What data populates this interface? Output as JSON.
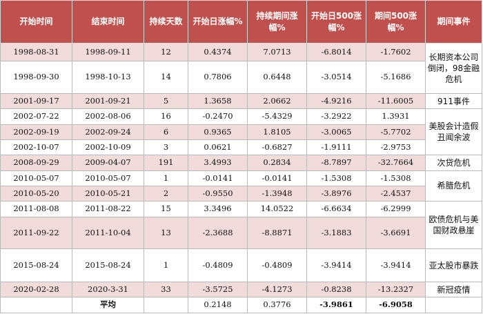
{
  "headers": [
    "开始时间",
    "结束时间",
    "持续天数",
    "开始日涨幅%",
    "持续期间涨幅%",
    "开始日500涨幅%",
    "期间500涨幅%",
    "期间事件"
  ],
  "rows": [
    [
      "1998-08-31",
      "1998-09-11",
      "12",
      "0.4374",
      "7.0713",
      "-6.8014",
      "-1.7602"
    ],
    [
      "1998-09-30",
      "1998-10-13",
      "14",
      "0.7806",
      "0.6448",
      "-3.0514",
      "-5.1686"
    ],
    [
      "2001-09-17",
      "2001-09-21",
      "5",
      "1.3658",
      "2.0662",
      "-4.9216",
      "-11.6005"
    ],
    [
      "2002-07-22",
      "2002-08-06",
      "16",
      "-0.2470",
      "-5.4329",
      "-3.2922",
      "1.3931"
    ],
    [
      "2002-09-19",
      "2002-09-24",
      "6",
      "0.9365",
      "1.8105",
      "-3.0065",
      "-5.7702"
    ],
    [
      "2002-10-07",
      "2002-10-09",
      "3",
      "0.0621",
      "-0.6827",
      "-1.9111",
      "-2.9753"
    ],
    [
      "2008-09-29",
      "2009-04-07",
      "191",
      "3.4993",
      "0.2834",
      "-8.7897",
      "-32.7664"
    ],
    [
      "2010-05-07",
      "2010-05-07",
      "1",
      "-0.0141",
      "-0.0141",
      "-1.5308",
      "-1.5308"
    ],
    [
      "2010-05-20",
      "2010-05-21",
      "2",
      "-0.9550",
      "-1.3948",
      "-3.8976",
      "-2.4537"
    ],
    [
      "2011-08-08",
      "2011-08-22",
      "15",
      "3.3496",
      "14.0522",
      "-6.6634",
      "-6.2999"
    ],
    [
      "2011-09-22",
      "2011-10-04",
      "13",
      "-2.3688",
      "-8.8871",
      "-3.1883",
      "-3.6691"
    ],
    [
      "2015-08-24",
      "2015-08-24",
      "1",
      "-0.4809",
      "-0.4809",
      "-3.9414",
      "-3.9414"
    ],
    [
      "2020-02-28",
      "2020-3-31",
      "33",
      "-3.5725",
      "-4.1273",
      "-0.8238",
      "-13.2327"
    ]
  ],
  "events": [
    "长期资本公司倒闭，98金融危机",
    "911事件",
    "美股会计造假丑闻余波",
    "次贷危机",
    "希腊危机",
    "欧债危机与美国财政悬崖",
    "亚太股市暴跌",
    "新冠疫情"
  ],
  "average": {
    "label": "平均",
    "values": [
      "0.2148",
      "0.3776",
      "-3.9861",
      "-6.9058"
    ]
  }
}
